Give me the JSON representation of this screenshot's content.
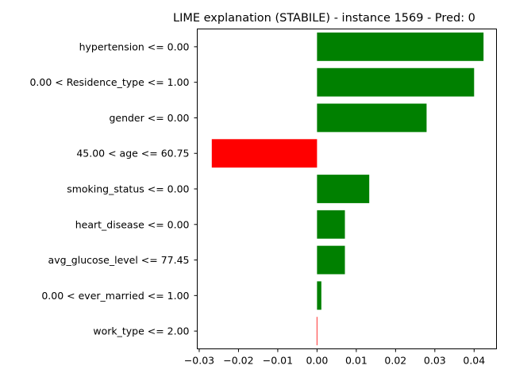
{
  "chart_data": {
    "type": "bar",
    "orientation": "horizontal",
    "title": "LIME explanation (STABILE) - instance 1569 - Pred: 0",
    "xlabel": "",
    "ylabel": "",
    "categories": [
      "hypertension <= 0.00",
      "0.00 < Residence_type <= 1.00",
      "gender <= 0.00",
      "45.00 < age <= 60.75",
      "smoking_status <= 0.00",
      "heart_disease <= 0.00",
      "avg_glucose_level <= 77.45",
      "0.00 < ever_married <= 1.00",
      "work_type <= 2.00"
    ],
    "values": [
      0.0424,
      0.04,
      0.0279,
      -0.0268,
      0.0133,
      0.0071,
      0.0071,
      0.0011,
      -0.0001
    ],
    "xlim": [
      -0.0305,
      0.0457
    ],
    "xticks": [
      -0.03,
      -0.02,
      -0.01,
      0.0,
      0.01,
      0.02,
      0.03,
      0.04
    ],
    "xtick_labels": [
      "−0.03",
      "−0.02",
      "−0.01",
      "0.00",
      "0.01",
      "0.02",
      "0.03",
      "0.04"
    ],
    "colors": {
      "positive": "#008000",
      "negative": "#ff0000"
    },
    "grid": false,
    "legend": "none"
  }
}
